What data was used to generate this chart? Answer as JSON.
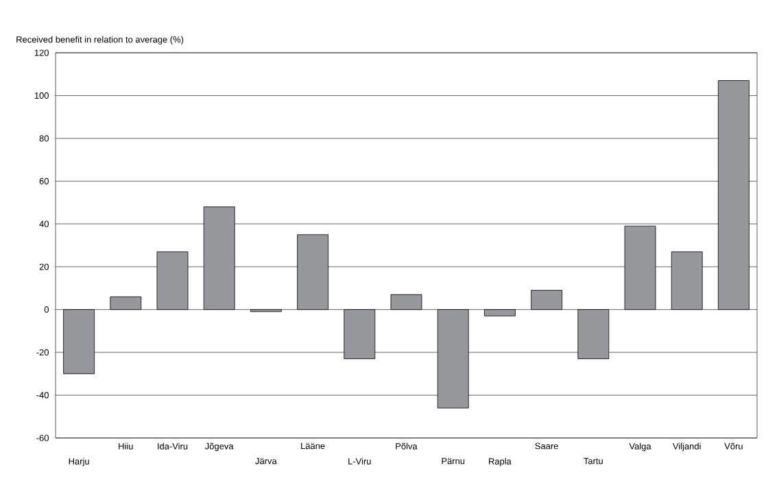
{
  "chart_data": {
    "type": "bar",
    "ylabel": "Received benefit in relation to average (%)",
    "categories": [
      "Harju",
      "Hiiu",
      "Ida-Viru",
      "Jõgeva",
      "Järva",
      "Lääne",
      "L-Viru",
      "Põlva",
      "Pärnu",
      "Rapla",
      "Saare",
      "Tartu",
      "Valga",
      "Viljandi",
      "Võru"
    ],
    "values": [
      -30,
      6,
      27,
      48,
      -1,
      35,
      -23,
      7,
      -46,
      -3,
      9,
      -23,
      39,
      27,
      107
    ],
    "color": "#97989c",
    "ylim": [
      -60,
      120
    ],
    "yticks": [
      -60,
      -40,
      -20,
      0,
      20,
      40,
      60,
      80,
      100,
      120
    ],
    "grid": "y"
  }
}
